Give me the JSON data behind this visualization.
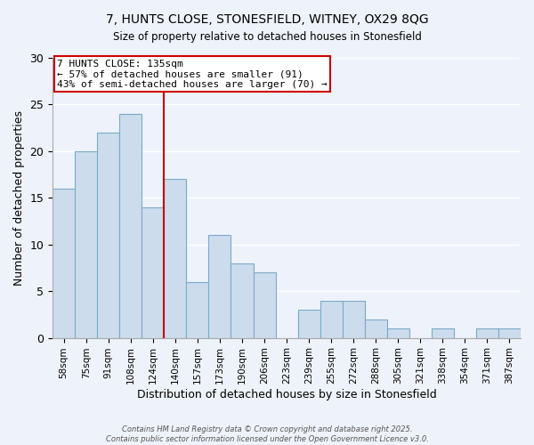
{
  "title": "7, HUNTS CLOSE, STONESFIELD, WITNEY, OX29 8QG",
  "subtitle": "Size of property relative to detached houses in Stonesfield",
  "xlabel": "Distribution of detached houses by size in Stonesfield",
  "ylabel": "Number of detached properties",
  "bar_color": "#ccdcec",
  "bar_edge_color": "#7aaac8",
  "background_color": "#eef2fa",
  "grid_color": "#ffffff",
  "bins": [
    "58sqm",
    "75sqm",
    "91sqm",
    "108sqm",
    "124sqm",
    "140sqm",
    "157sqm",
    "173sqm",
    "190sqm",
    "206sqm",
    "223sqm",
    "239sqm",
    "255sqm",
    "272sqm",
    "288sqm",
    "305sqm",
    "321sqm",
    "338sqm",
    "354sqm",
    "371sqm",
    "387sqm"
  ],
  "values": [
    16,
    20,
    22,
    24,
    14,
    17,
    6,
    11,
    8,
    7,
    0,
    3,
    4,
    4,
    2,
    1,
    0,
    1,
    0,
    1,
    1
  ],
  "ylim": [
    0,
    30
  ],
  "yticks": [
    0,
    5,
    10,
    15,
    20,
    25,
    30
  ],
  "vline_bin_index": 5,
  "vline_label": "7 HUNTS CLOSE: 135sqm",
  "annotation_line1": "← 57% of detached houses are smaller (91)",
  "annotation_line2": "43% of semi-detached houses are larger (70) →",
  "annotation_box_color": "#ffffff",
  "annotation_box_edge": "#cc0000",
  "vline_color": "#cc0000",
  "footer1": "Contains HM Land Registry data © Crown copyright and database right 2025.",
  "footer2": "Contains public sector information licensed under the Open Government Licence v3.0."
}
